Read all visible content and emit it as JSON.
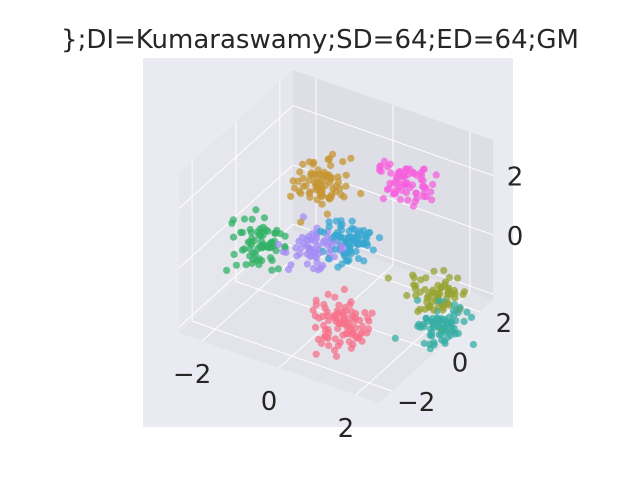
{
  "chart_data": {
    "type": "scatter",
    "projection": "3d",
    "title": "};DI=Kumaraswamy;SD=64;ED=64;GM",
    "xlabel": "",
    "ylabel": "",
    "zlabel": "",
    "x_ticks": [
      "−2",
      "0",
      "2"
    ],
    "y_ticks": [
      "−2",
      "0",
      "2"
    ],
    "z_ticks": [
      "0",
      "2"
    ],
    "xlim": [
      -2.6,
      2.6
    ],
    "ylim": [
      -2.6,
      2.6
    ],
    "zlim": [
      -2.2,
      3.2
    ],
    "grid": true,
    "legend": "none",
    "pane_color": "#eaeaf2",
    "series": [
      {
        "color": "#f77189",
        "center": [
          0.8,
          -1.2,
          -1.3
        ],
        "spread": 0.35,
        "n": 90
      },
      {
        "color": "#c69532",
        "center": [
          -0.9,
          1.0,
          1.2
        ],
        "spread": 0.32,
        "n": 80
      },
      {
        "color": "#97a431",
        "center": [
          1.9,
          1.3,
          -1.5
        ],
        "spread": 0.3,
        "n": 70
      },
      {
        "color": "#36ada4",
        "center": [
          2.2,
          0.8,
          -2.0
        ],
        "spread": 0.3,
        "n": 70
      },
      {
        "color": "#32b166",
        "center": [
          -1.7,
          -0.5,
          -0.1
        ],
        "spread": 0.3,
        "n": 70
      },
      {
        "color": "#38a7d0",
        "center": [
          0.0,
          0.6,
          -0.1
        ],
        "spread": 0.32,
        "n": 80
      },
      {
        "color": "#a48cf4",
        "center": [
          -0.6,
          0.1,
          -0.3
        ],
        "spread": 0.3,
        "n": 60
      },
      {
        "color": "#f561dd",
        "center": [
          0.5,
          2.3,
          1.0
        ],
        "spread": 0.32,
        "n": 70
      }
    ]
  }
}
